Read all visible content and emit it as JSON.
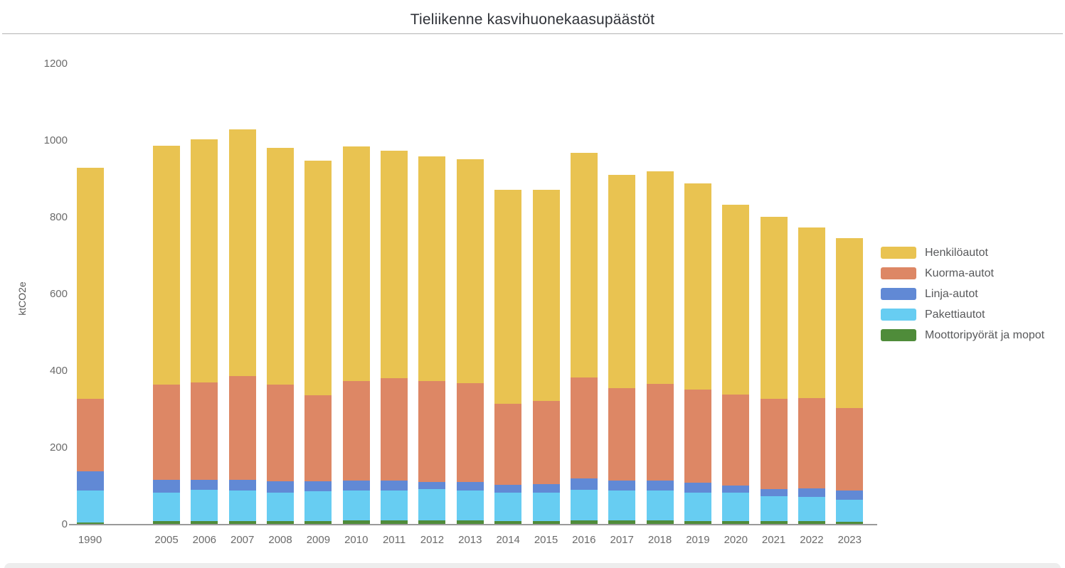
{
  "page": {
    "title": "Tieliikenne kasvihuonekaasupäästöt"
  },
  "chart_data": {
    "type": "bar",
    "stacked": true,
    "title": "Tieliikenne kasvihuonekaasupäästöt",
    "ylabel": "ktCO2e",
    "xlabel": "",
    "ylim": [
      0,
      1200
    ],
    "yticks": [
      0,
      200,
      400,
      600,
      800,
      1000,
      1200
    ],
    "grid": false,
    "legend_position": "right",
    "categories": [
      "1990",
      "2005",
      "2006",
      "2007",
      "2008",
      "2009",
      "2010",
      "2011",
      "2012",
      "2013",
      "2014",
      "2015",
      "2016",
      "2017",
      "2018",
      "2019",
      "2020",
      "2021",
      "2022",
      "2023"
    ],
    "series": [
      {
        "name": "Moottoripyörät ja mopot",
        "color": "#4f8c3a",
        "values": [
          5,
          10,
          9,
          9,
          9,
          9,
          11,
          11,
          11,
          11,
          10,
          10,
          11,
          11,
          11,
          10,
          9,
          9,
          9,
          8
        ]
      },
      {
        "name": "Pakettiautot",
        "color": "#67cdf2",
        "values": [
          83,
          74,
          81,
          80,
          75,
          78,
          78,
          77,
          81,
          78,
          73,
          73,
          80,
          77,
          77,
          74,
          74,
          65,
          63,
          57
        ]
      },
      {
        "name": "Linja-autot",
        "color": "#6189d5",
        "values": [
          50,
          33,
          27,
          28,
          29,
          26,
          26,
          26,
          19,
          22,
          20,
          23,
          29,
          27,
          27,
          25,
          18,
          19,
          23,
          23
        ]
      },
      {
        "name": "Kuorma-autot",
        "color": "#dd8765",
        "values": [
          190,
          247,
          254,
          270,
          252,
          224,
          259,
          268,
          263,
          257,
          212,
          216,
          263,
          241,
          251,
          242,
          237,
          235,
          235,
          216
        ]
      },
      {
        "name": "Henkilöautot",
        "color": "#e9c351",
        "values": [
          602,
          623,
          633,
          643,
          617,
          612,
          612,
          593,
          585,
          583,
          558,
          551,
          586,
          555,
          555,
          537,
          496,
          473,
          445,
          443
        ]
      }
    ],
    "series_order_note": "series listed bottom-to-top of stack",
    "legend_top_to_bottom": [
      "Henkilöautot",
      "Kuorma-autot",
      "Linja-autot",
      "Pakettiautot",
      "Moottoripyörät ja mopot"
    ],
    "totals": [
      930,
      987,
      1004,
      1030,
      982,
      949,
      986,
      975,
      959,
      951,
      873,
      873,
      969,
      911,
      921,
      888,
      834,
      801,
      775,
      747
    ]
  }
}
